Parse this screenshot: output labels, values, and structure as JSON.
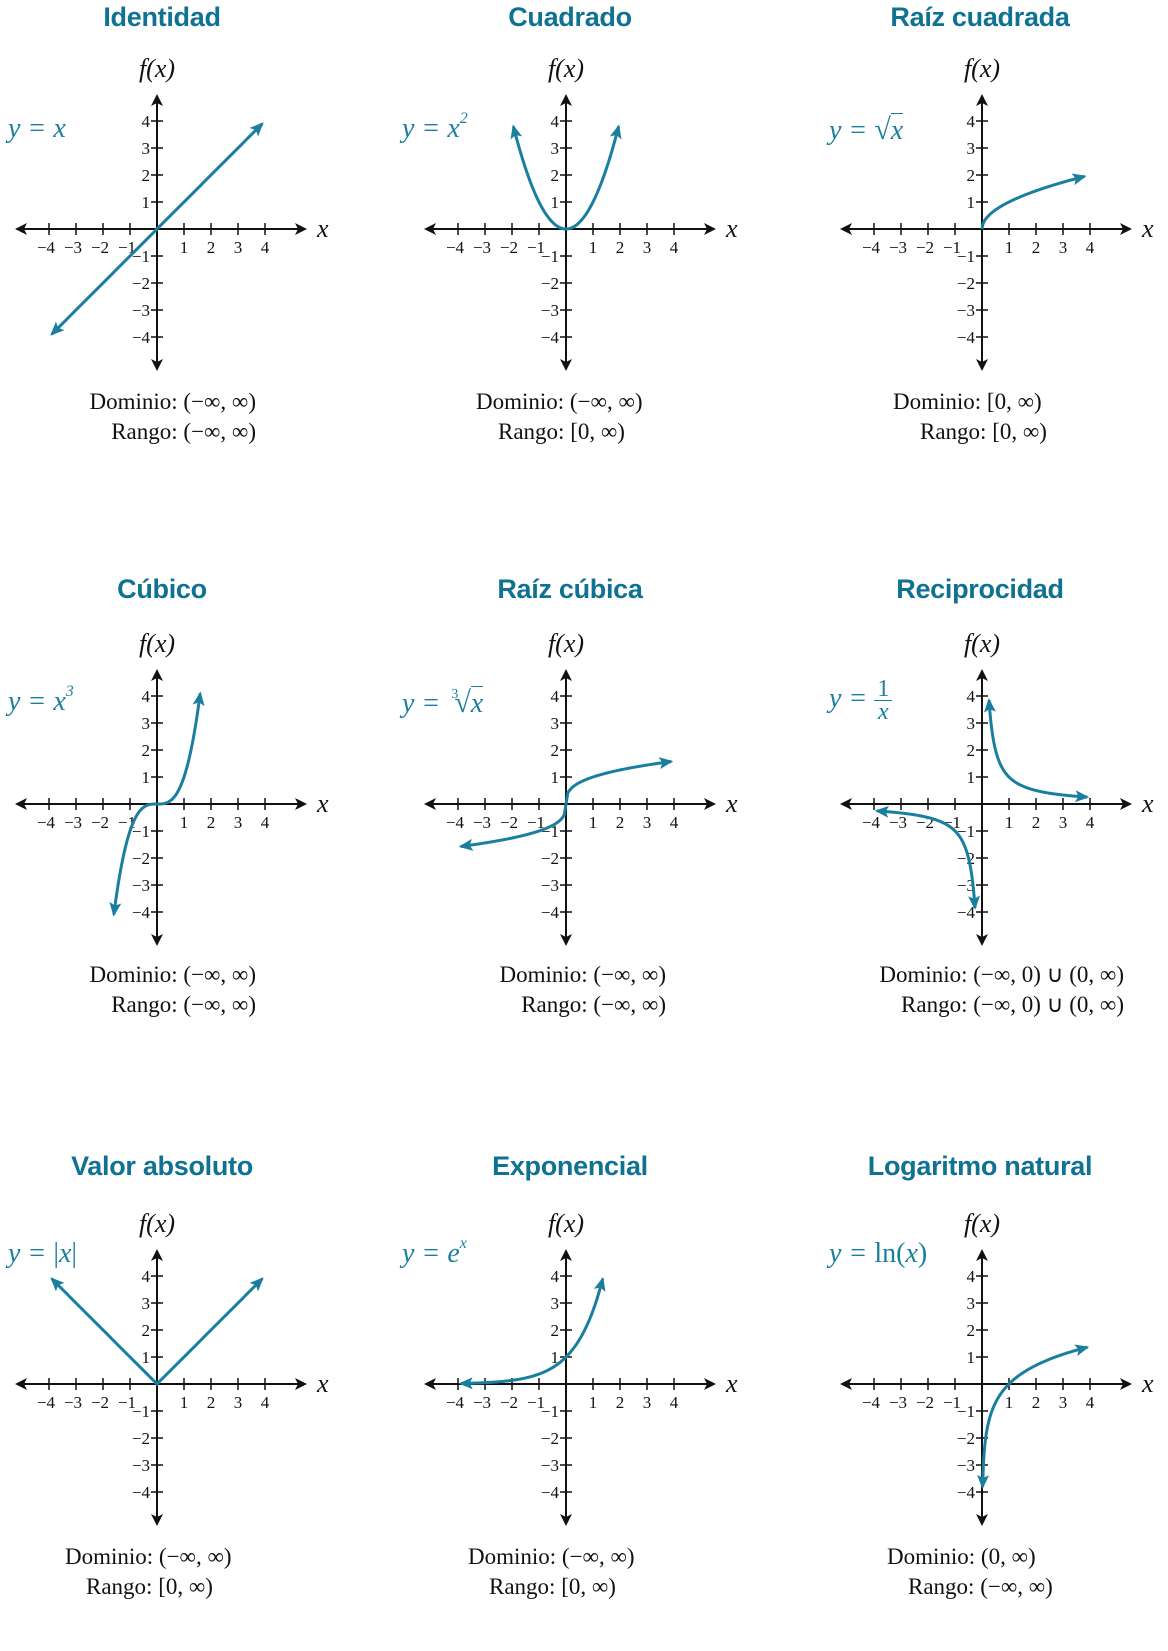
{
  "chart_data": [
    {
      "type": "line",
      "title": "Identidad",
      "equation": "y = x",
      "function": "identity",
      "xlabel": "x",
      "ylabel": "f(x)",
      "xlim": [
        -4,
        4
      ],
      "ylim": [
        -4,
        4
      ],
      "x_ticks": [
        -4,
        -3,
        -2,
        -1,
        1,
        2,
        3,
        4
      ],
      "y_ticks": [
        -4,
        -3,
        -2,
        -1,
        1,
        2,
        3,
        4
      ],
      "series": [
        {
          "x": [
            -4,
            -2,
            0,
            2,
            4
          ],
          "y": [
            -4,
            -2,
            0,
            2,
            4
          ]
        }
      ],
      "domain_label": "Dominio:",
      "domain": "(−∞, ∞)",
      "range_label": "Rango:",
      "range": "(−∞, ∞)"
    },
    {
      "type": "line",
      "title": "Cuadrado",
      "equation": "y = x²",
      "function": "square",
      "xlabel": "x",
      "ylabel": "f(x)",
      "xlim": [
        -4,
        4
      ],
      "ylim": [
        -4,
        4
      ],
      "x_ticks": [
        -4,
        -3,
        -2,
        -1,
        1,
        2,
        3,
        4
      ],
      "y_ticks": [
        -4,
        -3,
        -2,
        -1,
        1,
        2,
        3,
        4
      ],
      "series": [
        {
          "x": [
            -2,
            -1,
            0,
            1,
            2
          ],
          "y": [
            4,
            1,
            0,
            1,
            4
          ]
        }
      ],
      "domain_label": "Dominio:",
      "domain": "(−∞, ∞)",
      "range_label": "Rango:",
      "range": "[0, ∞)"
    },
    {
      "type": "line",
      "title": "Raíz cuadrada",
      "equation": "y = √x",
      "function": "sqrt",
      "xlabel": "x",
      "ylabel": "f(x)",
      "xlim": [
        -4,
        4
      ],
      "ylim": [
        -4,
        4
      ],
      "x_ticks": [
        -4,
        -3,
        -2,
        -1,
        1,
        2,
        3,
        4
      ],
      "y_ticks": [
        -4,
        -3,
        -2,
        -1,
        1,
        2,
        3,
        4
      ],
      "series": [
        {
          "x": [
            0,
            1,
            4
          ],
          "y": [
            0,
            1,
            2
          ]
        }
      ],
      "domain_label": "Dominio:",
      "domain": "[0, ∞)",
      "range_label": "Rango:",
      "range": "[0, ∞)"
    },
    {
      "type": "line",
      "title": "Cúbico",
      "equation": "y = x³",
      "function": "cube",
      "xlabel": "x",
      "ylabel": "f(x)",
      "xlim": [
        -4,
        4
      ],
      "ylim": [
        -4,
        4
      ],
      "x_ticks": [
        -4,
        -3,
        -2,
        -1,
        1,
        2,
        3,
        4
      ],
      "y_ticks": [
        -4,
        -3,
        -2,
        -1,
        1,
        2,
        3,
        4
      ],
      "series": [
        {
          "x": [
            -1.6,
            -1,
            0,
            1,
            1.6
          ],
          "y": [
            -4.1,
            -1,
            0,
            1,
            4.1
          ]
        }
      ],
      "domain_label": "Dominio:",
      "domain": "(−∞, ∞)",
      "range_label": "Rango:",
      "range": "(−∞, ∞)"
    },
    {
      "type": "line",
      "title": "Raíz cúbica",
      "equation": "y = ∛x",
      "function": "cbrt",
      "xlabel": "x",
      "ylabel": "f(x)",
      "xlim": [
        -4,
        4
      ],
      "ylim": [
        -4,
        4
      ],
      "x_ticks": [
        -4,
        -3,
        -2,
        -1,
        1,
        2,
        3,
        4
      ],
      "y_ticks": [
        -4,
        -3,
        -2,
        -1,
        1,
        2,
        3,
        4
      ],
      "series": [
        {
          "x": [
            -4,
            -1,
            0,
            1,
            4
          ],
          "y": [
            -1.59,
            -1,
            0,
            1,
            1.59
          ]
        }
      ],
      "domain_label": "Dominio:",
      "domain": "(−∞, ∞)",
      "range_label": "Rango:",
      "range": "(−∞, ∞)"
    },
    {
      "type": "line",
      "title": "Reciprocidad",
      "equation": "y = 1/x",
      "equation_num": "1",
      "equation_den": "x",
      "function": "reciprocal",
      "xlabel": "x",
      "ylabel": "f(x)",
      "xlim": [
        -4,
        4
      ],
      "ylim": [
        -4,
        4
      ],
      "x_ticks": [
        -4,
        -3,
        -2,
        -1,
        1,
        2,
        3,
        4
      ],
      "y_ticks": [
        -4,
        -3,
        -2,
        -1,
        1,
        2,
        3,
        4
      ],
      "series": [
        {
          "x": [
            0.25,
            0.5,
            1,
            2,
            4
          ],
          "y": [
            4,
            2,
            1,
            0.5,
            0.25
          ]
        },
        {
          "x": [
            -4,
            -2,
            -1,
            -0.5,
            -0.25
          ],
          "y": [
            -0.25,
            -0.5,
            -1,
            -2,
            -4
          ]
        }
      ],
      "domain_label": "Dominio:",
      "domain": "(−∞, 0) ∪ (0, ∞)",
      "range_label": "Rango:",
      "range": "(−∞, 0) ∪ (0, ∞)"
    },
    {
      "type": "line",
      "title": "Valor absoluto",
      "equation": "y = |x|",
      "function": "abs",
      "xlabel": "x",
      "ylabel": "f(x)",
      "xlim": [
        -4,
        4
      ],
      "ylim": [
        -4,
        4
      ],
      "x_ticks": [
        -4,
        -3,
        -2,
        -1,
        1,
        2,
        3,
        4
      ],
      "y_ticks": [
        -4,
        -3,
        -2,
        -1,
        1,
        2,
        3,
        4
      ],
      "series": [
        {
          "x": [
            -4,
            -2,
            0,
            2,
            4
          ],
          "y": [
            4,
            2,
            0,
            2,
            4
          ]
        }
      ],
      "domain_label": "Dominio:",
      "domain": "(−∞, ∞)",
      "range_label": "Rango:",
      "range": "[0, ∞)"
    },
    {
      "type": "line",
      "title": "Exponencial",
      "equation": "y = eˣ",
      "function": "exp",
      "xlabel": "x",
      "ylabel": "f(x)",
      "xlim": [
        -4,
        4
      ],
      "ylim": [
        -4,
        4
      ],
      "x_ticks": [
        -4,
        -3,
        -2,
        -1,
        1,
        2,
        3,
        4
      ],
      "y_ticks": [
        -4,
        -3,
        -2,
        -1,
        1,
        2,
        3,
        4
      ],
      "series": [
        {
          "x": [
            -4,
            -2,
            0,
            1,
            1.35
          ],
          "y": [
            0.02,
            0.14,
            1,
            2.72,
            3.86
          ]
        }
      ],
      "domain_label": "Dominio:",
      "domain": "(−∞, ∞)",
      "range_label": "Rango:",
      "range": "[0, ∞)"
    },
    {
      "type": "line",
      "title": "Logaritmo natural",
      "equation": "y = ln(x)",
      "function": "ln",
      "xlabel": "x",
      "ylabel": "f(x)",
      "xlim": [
        -4,
        4
      ],
      "ylim": [
        -4,
        4
      ],
      "x_ticks": [
        -4,
        -3,
        -2,
        -1,
        1,
        2,
        3,
        4
      ],
      "y_ticks": [
        -4,
        -3,
        -2,
        -1,
        1,
        2,
        3,
        4
      ],
      "series": [
        {
          "x": [
            0.02,
            0.1,
            1,
            2,
            4
          ],
          "y": [
            -3.9,
            -2.3,
            0,
            0.69,
            1.39
          ]
        }
      ],
      "domain_label": "Dominio:",
      "domain": "(0, ∞)",
      "range_label": "Rango:",
      "range": "(−∞, ∞)"
    }
  ],
  "colors": {
    "title": "#0f7293",
    "curve": "#1a7f9e",
    "axis": "#111111"
  }
}
